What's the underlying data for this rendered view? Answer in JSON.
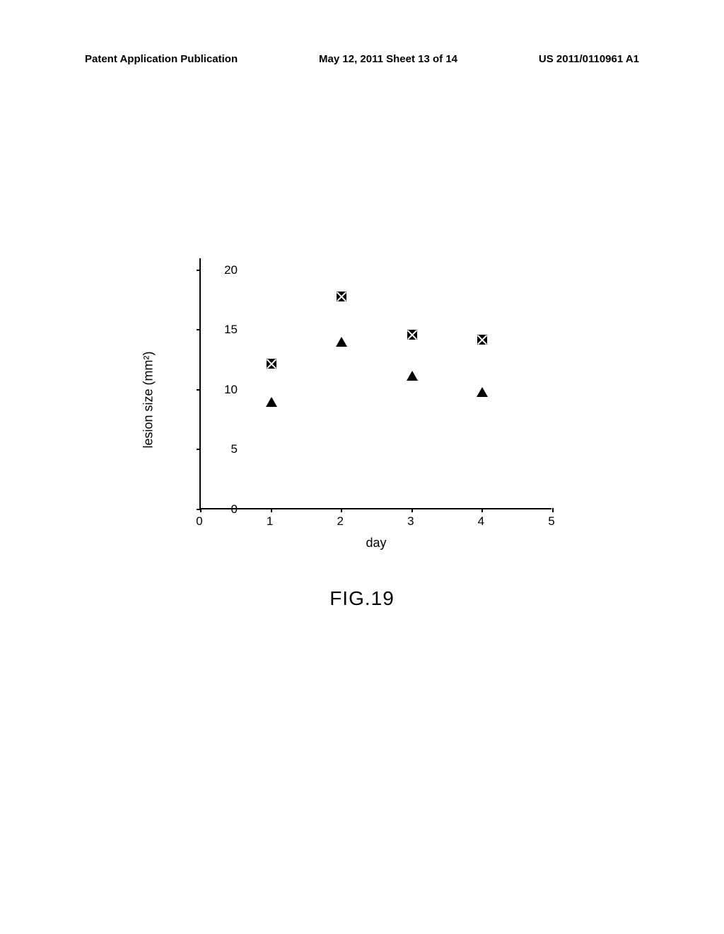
{
  "header": {
    "left": "Patent Application Publication",
    "center": "May 12, 2011  Sheet 13 of 14",
    "right": "US 2011/0110961 A1"
  },
  "chart": {
    "type": "scatter",
    "x_axis_title": "day",
    "y_axis_title": "lesion size (mm²)",
    "xlim": [
      0,
      5
    ],
    "ylim": [
      0,
      21
    ],
    "x_ticks": [
      0,
      1,
      2,
      3,
      4,
      5
    ],
    "y_ticks": [
      0,
      5,
      10,
      15,
      20
    ],
    "background_color": "#ffffff",
    "marker_size": 14,
    "series": [
      {
        "name": "series-squares",
        "marker": "square-x",
        "color": "#000000",
        "points": [
          {
            "x": 1,
            "y": 12.2
          },
          {
            "x": 2,
            "y": 17.8
          },
          {
            "x": 3,
            "y": 14.6
          },
          {
            "x": 4,
            "y": 14.2
          }
        ]
      },
      {
        "name": "series-triangles",
        "marker": "triangle",
        "color": "#000000",
        "points": [
          {
            "x": 1,
            "y": 9.0
          },
          {
            "x": 2,
            "y": 14.0
          },
          {
            "x": 3,
            "y": 11.2
          },
          {
            "x": 4,
            "y": 9.8
          }
        ]
      }
    ]
  },
  "figure_label": "FIG.19"
}
